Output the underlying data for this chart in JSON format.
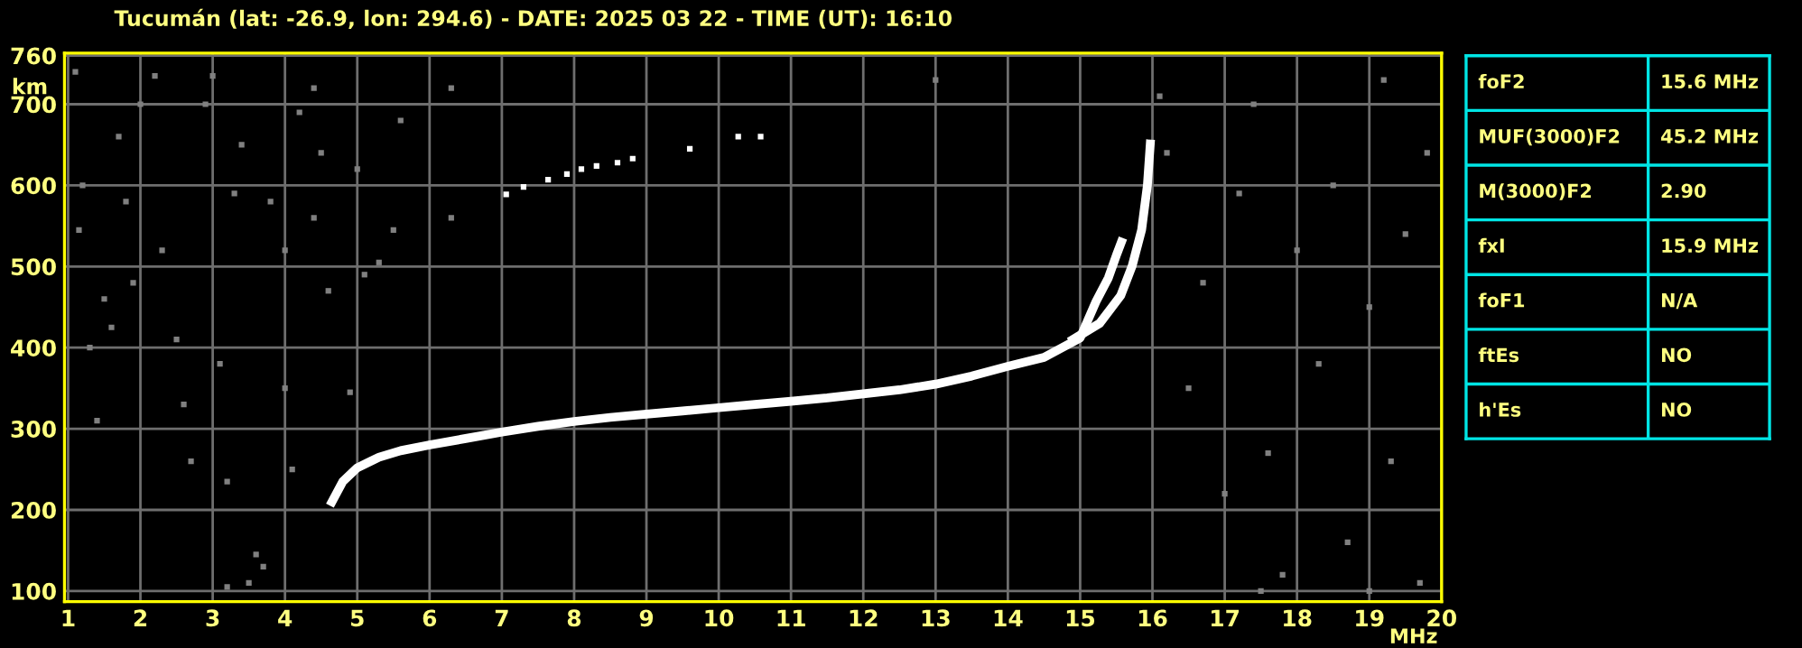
{
  "chart_data": [
    {
      "type": "scatter",
      "title": "Tucumán (lat: -26.9, lon: 294.6) - DATE: 2025 03 22 - TIME (UT): 16:10",
      "xlabel": "MHz",
      "ylabel": "km",
      "xlim": [
        0.95,
        20
      ],
      "ylim": [
        87,
        763
      ],
      "xticks": [
        1,
        2,
        3,
        4,
        5,
        6,
        7,
        8,
        9,
        10,
        11,
        12,
        13,
        14,
        15,
        16,
        17,
        18,
        19,
        20
      ],
      "yticks": [
        100,
        200,
        300,
        400,
        500,
        600,
        700,
        760
      ],
      "grid": true,
      "legend": false,
      "marker": "square",
      "series": [
        {
          "type": "line",
          "marker": "none",
          "color": "#ffffff",
          "x": [
            4.65,
            4.8,
            5.0,
            5.3,
            5.6,
            6.0,
            6.5,
            7.0,
            7.5,
            8.0,
            8.5,
            9.0,
            9.5,
            10.0,
            10.5,
            11.0,
            11.5,
            12.0,
            12.5,
            13.0,
            13.5,
            14.0,
            14.5,
            15.0,
            15.22,
            15.39,
            15.51,
            15.57
          ],
          "values": [
            210,
            235,
            252,
            265,
            273,
            280,
            288,
            296,
            303,
            309,
            314,
            318,
            322,
            326,
            330,
            334,
            338,
            343,
            348,
            355,
            365,
            377,
            388,
            412,
            457,
            486,
            516,
            530
          ]
        },
        {
          "type": "line",
          "marker": "none",
          "color": "#ffffff",
          "x": [
            14.9,
            15.27,
            15.56,
            15.72,
            15.85,
            15.93,
            15.97
          ],
          "values": [
            410,
            430,
            464,
            501,
            545,
            600,
            651
          ]
        },
        {
          "type": "scatter",
          "color": "#ffffff",
          "x": [
            7.06,
            7.3,
            7.64,
            7.9,
            8.1,
            8.31,
            8.6,
            8.81,
            9.6,
            10.27,
            10.58
          ],
          "values": [
            589,
            598,
            607,
            614,
            620,
            624,
            628,
            633,
            645,
            660,
            660
          ]
        },
        {
          "type": "scatter",
          "color": "#808080",
          "x": [
            1.1,
            1.2,
            1.15,
            1.3,
            1.4,
            1.5,
            1.6,
            1.7,
            1.8,
            1.9,
            2.0,
            2.2,
            2.3,
            2.5,
            2.6,
            2.7,
            2.9,
            3.0,
            3.1,
            3.2,
            3.3,
            3.4,
            3.6,
            3.7,
            3.8,
            4.0,
            4.0,
            4.1,
            4.2,
            4.4,
            4.4,
            4.5,
            4.6,
            4.9,
            5.0,
            5.1,
            5.3,
            5.5,
            5.6,
            6.3,
            6.3,
            13.0,
            16.1,
            16.2,
            16.5,
            16.7,
            17.0,
            17.2,
            17.4,
            17.6,
            17.8,
            18.0,
            18.3,
            18.5,
            18.7,
            19.0,
            19.2,
            19.3,
            19.5,
            19.7,
            19.8,
            3.2,
            3.5,
            19.0,
            17.5
          ],
          "values": [
            740,
            600,
            545,
            400,
            310,
            460,
            425,
            660,
            580,
            480,
            700,
            735,
            520,
            410,
            330,
            260,
            700,
            735,
            380,
            235,
            590,
            650,
            145,
            130,
            580,
            520,
            350,
            250,
            690,
            720,
            560,
            640,
            470,
            345,
            620,
            490,
            505,
            545,
            680,
            720,
            560,
            730,
            710,
            640,
            350,
            480,
            220,
            590,
            700,
            270,
            120,
            520,
            380,
            600,
            160,
            450,
            730,
            260,
            540,
            110,
            640,
            105,
            110,
            100,
            100
          ]
        }
      ]
    },
    {
      "type": "other",
      "annotations": [
        "foF2",
        "15.6 MHz",
        "MUF(3000)F2",
        "45.2 MHz",
        "M(3000)F2",
        "2.90",
        "fxI",
        "15.9 MHz",
        "foF1",
        "N/A",
        "ftEs",
        "NO",
        "h'Es",
        "NO"
      ]
    }
  ]
}
